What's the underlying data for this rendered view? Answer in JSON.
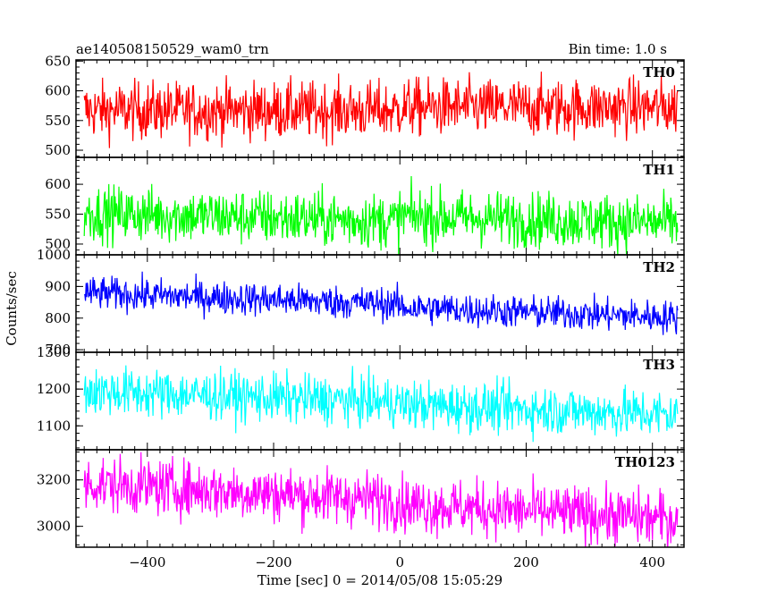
{
  "header": {
    "title": "ae140508150529_wam0_trn",
    "bin_time": "Bin time: 1.0 s"
  },
  "chart_data": {
    "type": "line",
    "ylabel": "Counts/sec",
    "xlabel": "Time [sec] 0 = 2014/05/08 15:05:29",
    "xlim": [
      -513,
      450
    ],
    "xticks": [
      -400,
      -200,
      0,
      200,
      400
    ],
    "x_start": -500,
    "x_end": 440,
    "bin_width": 1.0,
    "panels": [
      {
        "name": "TH0",
        "color": "#ff0000",
        "ylim": [
          488,
          652
        ],
        "yticks": [
          500,
          550,
          600,
          650
        ],
        "mean_start": 567,
        "mean_end": 567,
        "noise": 24,
        "gap_at": 0,
        "gap_shift": 5
      },
      {
        "name": "TH1",
        "color": "#00ff00",
        "ylim": [
          482,
          645
        ],
        "yticks": [
          500,
          550,
          600
        ],
        "mean_start": 552,
        "mean_end": 527,
        "noise": 23,
        "gap_at": 0,
        "gap_shift": 8
      },
      {
        "name": "TH2",
        "color": "#0000ff",
        "ylim": [
          692,
          1000
        ],
        "yticks": [
          700,
          800,
          900,
          1000
        ],
        "mean_start": 880,
        "mean_end": 812,
        "noise": 26,
        "gap_at": 0,
        "gap_shift": -10
      },
      {
        "name": "TH3",
        "color": "#00ffff",
        "ylim": [
          1035,
          1300
        ],
        "yticks": [
          1100,
          1200,
          1300
        ],
        "mean_start": 1195,
        "mean_end": 1135,
        "noise": 33,
        "gap_at": 0,
        "gap_shift": -5
      },
      {
        "name": "TH0123",
        "color": "#ff00ff",
        "ylim": [
          2910,
          3330
        ],
        "yticks": [
          3000,
          3200
        ],
        "mean_start": 3185,
        "mean_end": 3045,
        "noise": 60,
        "gap_at": 0,
        "gap_shift": -15
      }
    ]
  }
}
